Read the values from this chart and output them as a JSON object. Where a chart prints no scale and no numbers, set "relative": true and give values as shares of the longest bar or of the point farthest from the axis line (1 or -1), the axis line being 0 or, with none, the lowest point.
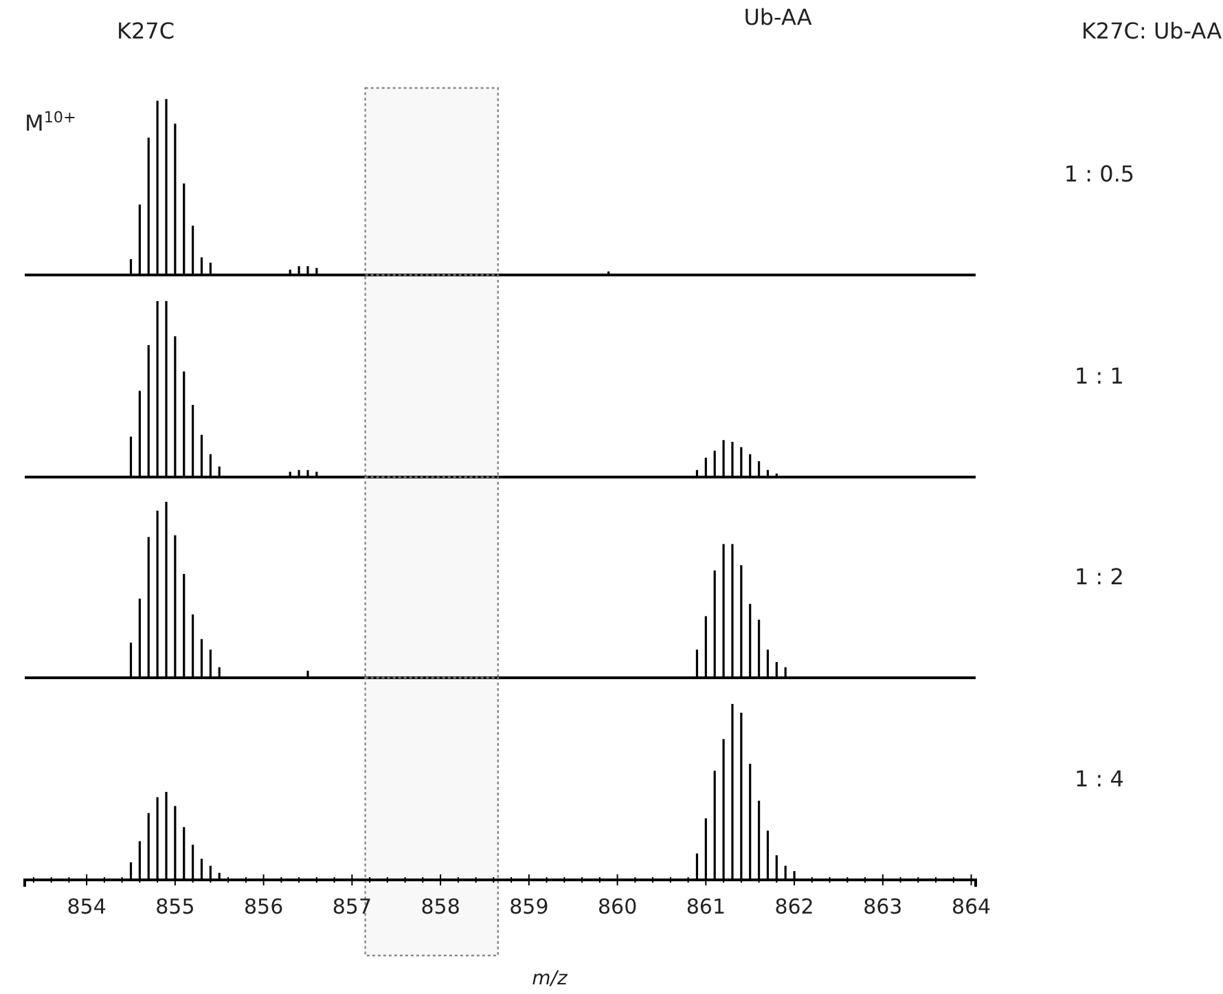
{
  "chart_data": [
    {
      "type": "bar",
      "annotations": [
        "K27C",
        "Ub-AA",
        "K27C: Ub-AA",
        "M$^{10+}$",
        "1 : 0.5"
      ],
      "relative": true,
      "tick_labels": false,
      "xlim": [
        853.3,
        864.05
      ],
      "color": "#000000",
      "x": [
        854.5,
        854.6,
        854.7,
        854.8,
        854.9,
        855.0,
        855.1,
        855.2,
        855.3,
        855.4,
        856.3,
        856.4,
        856.5,
        856.6,
        859.9
      ],
      "values": [
        0.09,
        0.4,
        0.78,
        0.99,
        1,
        0.86,
        0.52,
        0.28,
        0.1,
        0.07,
        0.03,
        0.05,
        0.05,
        0.04,
        0.02
      ],
      "bands": [
        {
          "axis": "x",
          "from": 857.15,
          "to": 858.65,
          "color": "#888888"
        }
      ]
    },
    {
      "type": "bar",
      "annotations": [
        "1 : 1"
      ],
      "relative": true,
      "tick_labels": false,
      "xlim": [
        853.3,
        864.05
      ],
      "color": "#000000",
      "x": [
        854.5,
        854.6,
        854.7,
        854.8,
        854.9,
        855.0,
        855.1,
        855.2,
        855.3,
        855.4,
        855.5,
        856.3,
        856.4,
        856.5,
        856.6,
        860.9,
        861.0,
        861.1,
        861.2,
        861.3,
        861.4,
        861.5,
        861.6,
        861.7,
        861.8
      ],
      "values": [
        0.23,
        0.49,
        0.75,
        1,
        1,
        0.8,
        0.6,
        0.41,
        0.24,
        0.13,
        0.06,
        0.03,
        0.04,
        0.04,
        0.03,
        0.04,
        0.11,
        0.15,
        0.21,
        0.2,
        0.17,
        0.13,
        0.09,
        0.04,
        0.02
      ],
      "bands": [
        {
          "axis": "x",
          "from": 857.15,
          "to": 858.65,
          "color": "#888888"
        }
      ]
    },
    {
      "type": "bar",
      "annotations": [
        "1 : 2"
      ],
      "relative": true,
      "tick_labels": false,
      "xlim": [
        853.3,
        864.05
      ],
      "color": "#000000",
      "x": [
        854.5,
        854.6,
        854.7,
        854.8,
        854.9,
        855.0,
        855.1,
        855.2,
        855.3,
        855.4,
        855.5,
        856.5,
        860.9,
        861.0,
        861.1,
        861.2,
        861.3,
        861.4,
        861.5,
        861.6,
        861.7,
        861.8,
        861.9
      ],
      "values": [
        0.2,
        0.45,
        0.8,
        0.95,
        1,
        0.81,
        0.59,
        0.36,
        0.22,
        0.16,
        0.06,
        0.04,
        0.16,
        0.35,
        0.61,
        0.76,
        0.76,
        0.64,
        0.42,
        0.33,
        0.16,
        0.09,
        0.06
      ],
      "bands": [
        {
          "axis": "x",
          "from": 857.15,
          "to": 858.65,
          "color": "#888888"
        }
      ]
    },
    {
      "type": "bar",
      "annotations": [
        "1 : 4"
      ],
      "xlabel": "m/z",
      "relative": true,
      "tick_labels": "x",
      "xlim": [
        853.3,
        864.05
      ],
      "color": "#000000",
      "xticks": [
        {
          "value": 853.4,
          "label": null
        },
        {
          "value": 853.6,
          "label": null
        },
        {
          "value": 853.8,
          "label": null
        },
        854,
        {
          "value": 854.2,
          "label": null
        },
        {
          "value": 854.4,
          "label": null
        },
        {
          "value": 854.6,
          "label": null
        },
        {
          "value": 854.8,
          "label": null
        },
        855,
        {
          "value": 855.2,
          "label": null
        },
        {
          "value": 855.4,
          "label": null
        },
        {
          "value": 855.6,
          "label": null
        },
        {
          "value": 855.8,
          "label": null
        },
        856,
        {
          "value": 856.2,
          "label": null
        },
        {
          "value": 856.4,
          "label": null
        },
        {
          "value": 856.6,
          "label": null
        },
        {
          "value": 856.8,
          "label": null
        },
        857,
        {
          "value": 857.2,
          "label": null
        },
        {
          "value": 857.4,
          "label": null
        },
        {
          "value": 857.6,
          "label": null
        },
        {
          "value": 857.8,
          "label": null
        },
        858,
        {
          "value": 858.2,
          "label": null
        },
        {
          "value": 858.4,
          "label": null
        },
        {
          "value": 858.6,
          "label": null
        },
        {
          "value": 858.8,
          "label": null
        },
        859,
        {
          "value": 859.2,
          "label": null
        },
        {
          "value": 859.4,
          "label": null
        },
        {
          "value": 859.6,
          "label": null
        },
        {
          "value": 859.8,
          "label": null
        },
        860,
        {
          "value": 860.2,
          "label": null
        },
        {
          "value": 860.4,
          "label": null
        },
        {
          "value": 860.6,
          "label": null
        },
        {
          "value": 860.8,
          "label": null
        },
        861,
        {
          "value": 861.2,
          "label": null
        },
        {
          "value": 861.4,
          "label": null
        },
        {
          "value": 861.6,
          "label": null
        },
        {
          "value": 861.8,
          "label": null
        },
        862,
        {
          "value": 862.2,
          "label": null
        },
        {
          "value": 862.4,
          "label": null
        },
        {
          "value": 862.6,
          "label": null
        },
        {
          "value": 862.8,
          "label": null
        },
        863,
        {
          "value": 863.2,
          "label": null
        },
        {
          "value": 863.4,
          "label": null
        },
        {
          "value": 863.6,
          "label": null
        },
        {
          "value": 863.8,
          "label": null
        },
        864
      ],
      "x": [
        854.5,
        854.6,
        854.7,
        854.8,
        854.9,
        855.0,
        855.1,
        855.2,
        855.3,
        855.4,
        855.5,
        860.9,
        861.0,
        861.1,
        861.2,
        861.3,
        861.4,
        861.5,
        861.6,
        861.7,
        861.8,
        861.9,
        862.0
      ],
      "values": [
        0.1,
        0.22,
        0.38,
        0.47,
        0.5,
        0.42,
        0.3,
        0.2,
        0.12,
        0.08,
        0.04,
        0.15,
        0.35,
        0.62,
        0.8,
        1,
        0.95,
        0.66,
        0.45,
        0.28,
        0.14,
        0.08,
        0.05
      ],
      "bands": [
        {
          "axis": "x",
          "from": 857.15,
          "to": 858.65,
          "color": "#888888"
        }
      ]
    }
  ]
}
